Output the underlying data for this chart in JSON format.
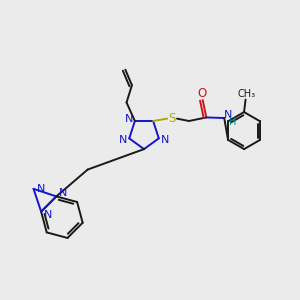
{
  "bg_color": "#ebebeb",
  "bond_color": "#1a1a1a",
  "N_color": "#1515cc",
  "O_color": "#cc1515",
  "S_color": "#aaaa00",
  "H_color": "#008080",
  "lw": 1.4,
  "fs": 8.5,
  "xlim": [
    0,
    10
  ],
  "ylim": [
    0,
    10
  ]
}
